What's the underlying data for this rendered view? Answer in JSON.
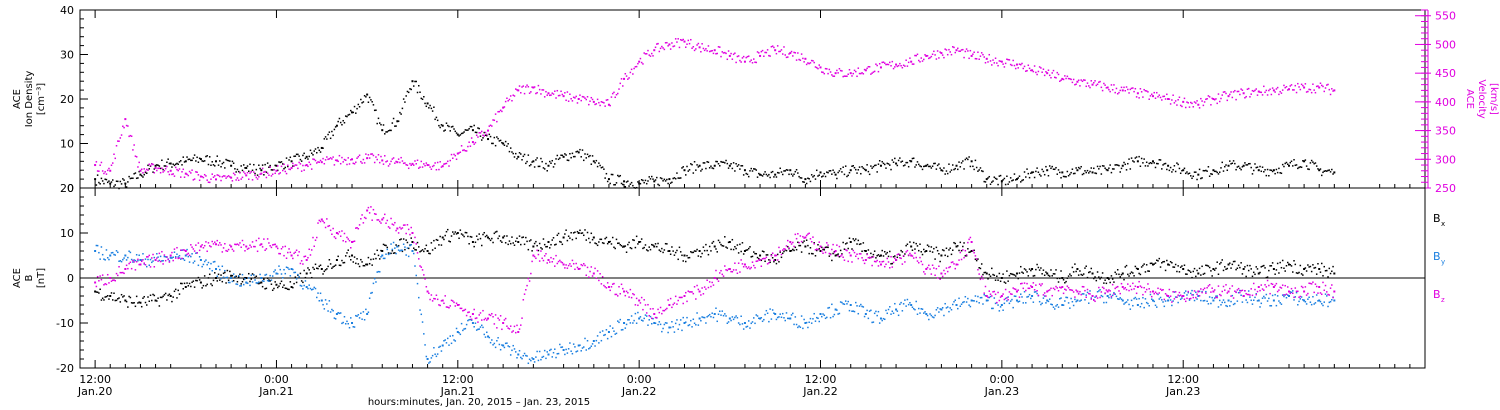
{
  "chart_data": [
    {
      "type": "scatter",
      "panel": "top",
      "ylabel_left": [
        "ACE",
        "Ion Density",
        "[cm⁻³]"
      ],
      "ylabel_right": [
        "ACE",
        "Velocity",
        "[km/s]"
      ],
      "ylim_left": [
        0,
        40
      ],
      "ylim_right": [
        250,
        560
      ],
      "left_ticks": [
        "0",
        "10",
        "20",
        "30",
        "40"
      ],
      "right_ticks": [
        "250",
        "300",
        "350",
        "400",
        "450",
        "500",
        "550"
      ],
      "series": [
        {
          "axis": "left",
          "color": "#000000",
          "x": [
            0,
            2,
            4,
            6,
            8,
            10,
            12,
            14,
            16,
            18,
            20,
            22,
            24,
            26,
            28,
            30,
            32,
            34,
            36,
            38,
            40,
            42,
            44,
            46,
            48,
            50,
            52,
            54,
            56,
            58,
            60,
            62,
            64,
            66,
            68,
            70,
            72,
            74,
            76,
            78,
            80,
            82,
            84,
            86,
            88,
            90,
            92,
            94,
            96,
            98,
            100,
            102,
            104,
            106,
            108,
            110,
            112,
            114,
            116,
            118,
            120,
            122,
            124,
            126,
            128,
            130,
            132,
            134,
            136,
            138,
            140,
            142,
            144,
            146,
            148,
            150,
            152,
            154,
            156,
            158,
            160,
            162,
            164
          ],
          "values": [
            2,
            1,
            1,
            3,
            5,
            5.5,
            6,
            6.5,
            6,
            5,
            4.5,
            4,
            5,
            6,
            7,
            9,
            14,
            17,
            21,
            13,
            15,
            24,
            19,
            14,
            12,
            13,
            11,
            10,
            7,
            6,
            5,
            7,
            8,
            6,
            2,
            1.5,
            1,
            1.5,
            2,
            4,
            5,
            5,
            5,
            4,
            3,
            3,
            4,
            2,
            3.5,
            3,
            4,
            4,
            5,
            5.5,
            6,
            5,
            4,
            5,
            6,
            2,
            1.5,
            2,
            3.5,
            4,
            3.5,
            4,
            3.5,
            4,
            5,
            6,
            6,
            5,
            4,
            3,
            4,
            5,
            5,
            4,
            4,
            5,
            6,
            4,
            3.5
          ]
        },
        {
          "axis": "right",
          "color": "#e000e0",
          "x": [
            0,
            2,
            4,
            6,
            8,
            10,
            12,
            14,
            16,
            18,
            20,
            22,
            24,
            26,
            28,
            30,
            32,
            34,
            36,
            38,
            40,
            42,
            44,
            46,
            48,
            50,
            52,
            54,
            56,
            58,
            60,
            62,
            64,
            66,
            68,
            70,
            72,
            74,
            76,
            78,
            80,
            82,
            84,
            86,
            88,
            90,
            92,
            94,
            96,
            98,
            100,
            102,
            104,
            106,
            108,
            110,
            112,
            114,
            116,
            118,
            120,
            122,
            124,
            126,
            128,
            130,
            132,
            134,
            136,
            138,
            140,
            142,
            144,
            146,
            148,
            150,
            152,
            154,
            156,
            158,
            160,
            162,
            164
          ],
          "values": [
            290,
            280,
            370,
            280,
            285,
            280,
            275,
            270,
            265,
            268,
            272,
            275,
            280,
            285,
            290,
            295,
            298,
            300,
            302,
            298,
            295,
            292,
            290,
            288,
            310,
            330,
            350,
            390,
            420,
            425,
            415,
            410,
            405,
            400,
            395,
            440,
            470,
            490,
            500,
            505,
            495,
            490,
            480,
            470,
            480,
            490,
            485,
            475,
            460,
            450,
            450,
            455,
            460,
            465,
            470,
            480,
            485,
            490,
            480,
            475,
            470,
            465,
            455,
            450,
            440,
            435,
            430,
            425,
            420,
            415,
            410,
            405,
            400,
            395,
            405,
            410,
            415,
            418,
            420,
            422,
            425,
            425,
            420
          ]
        }
      ]
    },
    {
      "type": "scatter",
      "panel": "bottom",
      "ylabel": [
        "ACE",
        "B",
        "[nT]"
      ],
      "ylim": [
        -20,
        20
      ],
      "ticks": [
        "-20",
        "-10",
        "0",
        "10",
        "20"
      ],
      "zero_line": true,
      "legend_position": "right",
      "series": [
        {
          "name": "B_x",
          "label": "B",
          "sub": "x",
          "color": "#000000",
          "x": [
            0,
            2,
            4,
            6,
            8,
            10,
            12,
            14,
            16,
            18,
            20,
            22,
            24,
            26,
            28,
            30,
            32,
            34,
            36,
            38,
            40,
            42,
            44,
            46,
            48,
            50,
            52,
            54,
            56,
            58,
            60,
            62,
            64,
            66,
            68,
            70,
            72,
            74,
            76,
            78,
            80,
            82,
            84,
            86,
            88,
            90,
            92,
            94,
            96,
            98,
            100,
            102,
            104,
            106,
            108,
            110,
            112,
            114,
            116,
            118,
            120,
            122,
            124,
            126,
            128,
            130,
            132,
            134,
            136,
            138,
            140,
            142,
            144,
            146,
            148,
            150,
            152,
            154,
            156,
            158,
            160,
            162,
            164
          ],
          "values": [
            -3,
            -4,
            -5,
            -5.5,
            -5,
            -4,
            -2,
            -1,
            0,
            0.5,
            0,
            -1,
            -1.5,
            -2,
            1,
            2,
            4,
            5,
            3,
            6,
            7,
            8,
            6,
            9,
            10,
            8,
            9,
            9,
            8,
            7,
            8,
            9,
            10,
            9,
            8,
            7,
            8,
            7,
            6,
            5,
            6,
            7,
            8,
            6,
            5,
            4,
            6,
            7,
            6,
            5,
            8,
            6,
            5,
            4,
            7,
            6,
            5,
            7,
            6,
            1,
            0,
            1,
            2,
            1,
            0,
            2,
            1,
            0,
            1,
            2,
            3,
            3,
            2,
            1,
            2,
            3,
            2,
            1,
            2,
            3,
            2,
            2,
            1
          ]
        },
        {
          "name": "B_y",
          "label": "B",
          "sub": "y",
          "color": "#1a7fe0",
          "x": [
            0,
            2,
            4,
            6,
            8,
            10,
            12,
            14,
            16,
            18,
            20,
            22,
            24,
            26,
            28,
            30,
            32,
            34,
            36,
            38,
            40,
            42,
            44,
            46,
            48,
            50,
            52,
            54,
            56,
            58,
            60,
            62,
            64,
            66,
            68,
            70,
            72,
            74,
            76,
            78,
            80,
            82,
            84,
            86,
            88,
            90,
            92,
            94,
            96,
            98,
            100,
            102,
            104,
            106,
            108,
            110,
            112,
            114,
            116,
            118,
            120,
            122,
            124,
            126,
            128,
            130,
            132,
            134,
            136,
            138,
            140,
            142,
            144,
            146,
            148,
            150,
            152,
            154,
            156,
            158,
            160,
            162,
            164
          ],
          "values": [
            6,
            5,
            5,
            4,
            4,
            4.5,
            5,
            4,
            2,
            0,
            -1,
            0,
            1,
            2,
            -2,
            -5,
            -8,
            -10,
            -8,
            5,
            7,
            6,
            -18,
            -15,
            -12,
            -10,
            -13,
            -15,
            -17,
            -18,
            -17,
            -16,
            -15,
            -14,
            -12,
            -10,
            -9,
            -10,
            -11,
            -10,
            -9,
            -8,
            -9,
            -10,
            -9,
            -8,
            -9,
            -10,
            -8,
            -7,
            -6,
            -8,
            -9,
            -7,
            -6,
            -8,
            -7,
            -6,
            -5,
            -5,
            -6,
            -5,
            -4,
            -5,
            -6,
            -5,
            -4,
            -4,
            -5,
            -6,
            -5,
            -5,
            -4,
            -4,
            -5,
            -5,
            -4,
            -5,
            -5,
            -4,
            -5,
            -5,
            -5
          ]
        },
        {
          "name": "B_z",
          "label": "B",
          "sub": "z",
          "color": "#e000e0",
          "x": [
            0,
            2,
            4,
            6,
            8,
            10,
            12,
            14,
            16,
            18,
            20,
            22,
            24,
            26,
            28,
            30,
            32,
            34,
            36,
            38,
            40,
            42,
            44,
            46,
            48,
            50,
            52,
            54,
            56,
            58,
            60,
            62,
            64,
            66,
            68,
            70,
            72,
            74,
            76,
            78,
            80,
            82,
            84,
            86,
            88,
            90,
            92,
            94,
            96,
            98,
            100,
            102,
            104,
            106,
            108,
            110,
            112,
            114,
            116,
            118,
            120,
            122,
            124,
            126,
            128,
            130,
            132,
            134,
            136,
            138,
            140,
            142,
            144,
            146,
            148,
            150,
            152,
            154,
            156,
            158,
            160,
            162,
            164
          ],
          "values": [
            -1,
            0,
            2,
            3,
            4,
            5,
            6,
            7,
            7.5,
            7,
            7,
            7.5,
            7,
            5,
            4,
            13,
            10,
            8,
            15,
            13,
            11,
            10,
            -3,
            -5,
            -6,
            -8,
            -9,
            -10,
            -12,
            5,
            4,
            3,
            2,
            1,
            -2,
            -3,
            -5,
            -8,
            -6,
            -4,
            -3,
            0,
            2,
            3,
            4,
            5,
            8,
            9,
            7,
            6,
            5,
            4,
            3,
            4,
            5,
            2,
            1,
            3,
            8,
            -4,
            -4,
            -3,
            -2,
            -3,
            -2,
            -3,
            -4,
            -3,
            -2,
            -2,
            -3,
            -4,
            -4,
            -3,
            -3,
            -3,
            -4,
            -2,
            -2,
            -3,
            -3,
            -2,
            -3
          ]
        }
      ]
    }
  ],
  "x_axis": {
    "xlim": [
      -2,
      176
    ],
    "ticks": [
      {
        "x": 0,
        "time": "12:00",
        "date": "Jan.20"
      },
      {
        "x": 24,
        "time": "0:00",
        "date": "Jan.21"
      },
      {
        "x": 48,
        "time": "12:00",
        "date": "Jan.21"
      },
      {
        "x": 72,
        "time": "0:00",
        "date": "Jan.22"
      },
      {
        "x": 96,
        "time": "12:00",
        "date": "Jan.22"
      },
      {
        "x": 120,
        "time": "0:00",
        "date": "Jan.23"
      },
      {
        "x": 144,
        "time": "12:00",
        "date": "Jan.23"
      }
    ],
    "title": "hours:minutes, Jan. 20, 2015 – Jan. 23, 2015"
  }
}
